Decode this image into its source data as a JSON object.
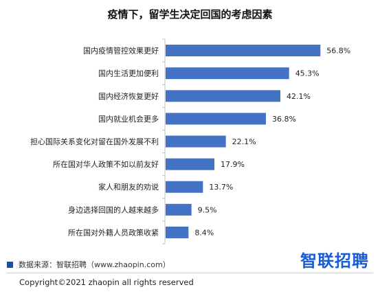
{
  "chart_data": {
    "type": "bar",
    "orientation": "horizontal",
    "title": "疫情下，留学生决定回国的考虑因素",
    "categories": [
      "国内疫情管控效果更好",
      "国内生活更加便利",
      "国内经济恢复更好",
      "国内就业机会更多",
      "担心国际关系变化对留在国外发展不利",
      "所在国对华人政策不如以前友好",
      "家人和朋友的劝说",
      "身边选择回国的人越来越多",
      "所在国对外籍人员政策收紧"
    ],
    "values": [
      56.8,
      45.3,
      42.1,
      36.8,
      22.1,
      17.9,
      13.7,
      9.5,
      8.4
    ],
    "value_labels": [
      "56.8%",
      "45.3%",
      "42.1%",
      "36.8%",
      "22.1%",
      "17.9%",
      "13.7%",
      "9.5%",
      "8.4%"
    ],
    "xlim": [
      0,
      60
    ],
    "grid": false,
    "bar_color": "#4472c4"
  },
  "footer": {
    "source": "数据来源：智联招聘（www.zhaopin.com）",
    "brand": "智联招聘",
    "brand_color": "#1a5bd6",
    "marker_color": "#1f4e9c",
    "copyright": "Copyright©2021 zhaopin all rights reserved"
  }
}
